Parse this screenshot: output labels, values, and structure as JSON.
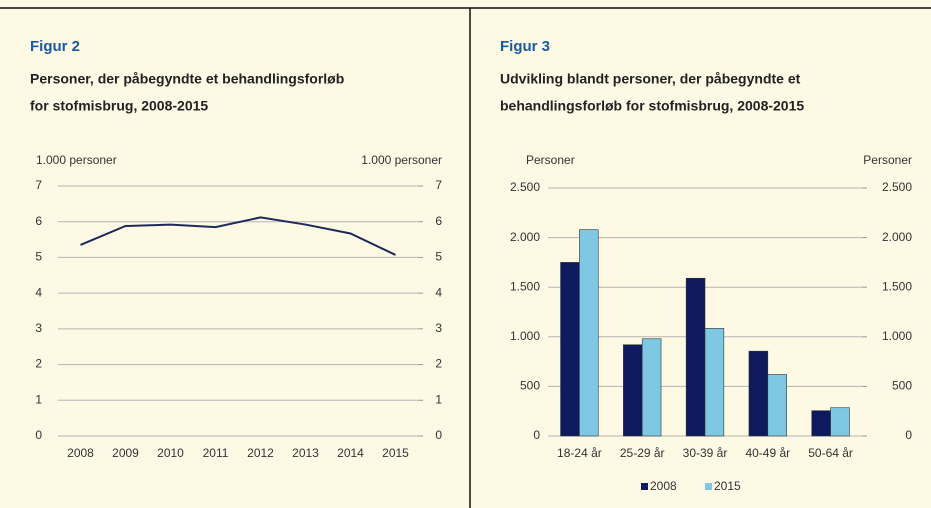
{
  "chart_data": [
    {
      "type": "line",
      "heading": "Figur 2",
      "title": [
        "Personer, der påbegyndte et behandlingsforløb",
        "for stofmisbrug, 2008-2015"
      ],
      "ylabel": "1.000 personer",
      "y2label": "1.000 personer",
      "categories": [
        "2008",
        "2009",
        "2010",
        "2011",
        "2012",
        "2013",
        "2014",
        "2015"
      ],
      "series": [
        {
          "name": "Personer",
          "color": "#1f2a5c",
          "values": [
            5.35,
            5.88,
            5.92,
            5.85,
            6.12,
            5.92,
            5.67,
            5.07
          ]
        }
      ],
      "ylim": [
        0,
        7
      ],
      "yticks": [
        0,
        1,
        2,
        3,
        4,
        5,
        6,
        7
      ],
      "y2lim": [
        0,
        7
      ],
      "y2ticks": [
        0,
        1,
        2,
        3,
        4,
        5,
        6,
        7
      ],
      "grid": true,
      "legend": false
    },
    {
      "type": "bar",
      "heading": "Figur 3",
      "title": [
        "Udvikling blandt personer, der påbegyndte et",
        "behandlingsforløb for stofmisbrug, 2008-2015"
      ],
      "ylabel": "Personer",
      "y2label": "Personer",
      "categories": [
        "18-24 år",
        "25-29 år",
        "30-39 år",
        "40-49 år",
        "50-64 år"
      ],
      "series": [
        {
          "name": "2008",
          "color": "#0d1b5e",
          "values": [
            1750,
            920,
            1590,
            855,
            255
          ]
        },
        {
          "name": "2015",
          "color": "#7ec8e3",
          "values": [
            2080,
            980,
            1085,
            620,
            285
          ]
        }
      ],
      "ylim": [
        0,
        2500
      ],
      "yticks": [
        0,
        500,
        {
          "value": 1000,
          "label": "1.000"
        },
        {
          "value": 1500,
          "label": "1.500"
        },
        {
          "value": 2000,
          "label": "2.000"
        },
        {
          "value": 2500,
          "label": "2.500"
        }
      ],
      "y2lim": [
        0,
        2500
      ],
      "y2ticks": [
        0,
        500,
        {
          "value": 1000,
          "label": "1.000"
        },
        {
          "value": 1500,
          "label": "1.500"
        },
        {
          "value": 2000,
          "label": "2.000"
        },
        {
          "value": 2500,
          "label": "2.500"
        }
      ],
      "grid": true,
      "legend": "bottom"
    }
  ]
}
